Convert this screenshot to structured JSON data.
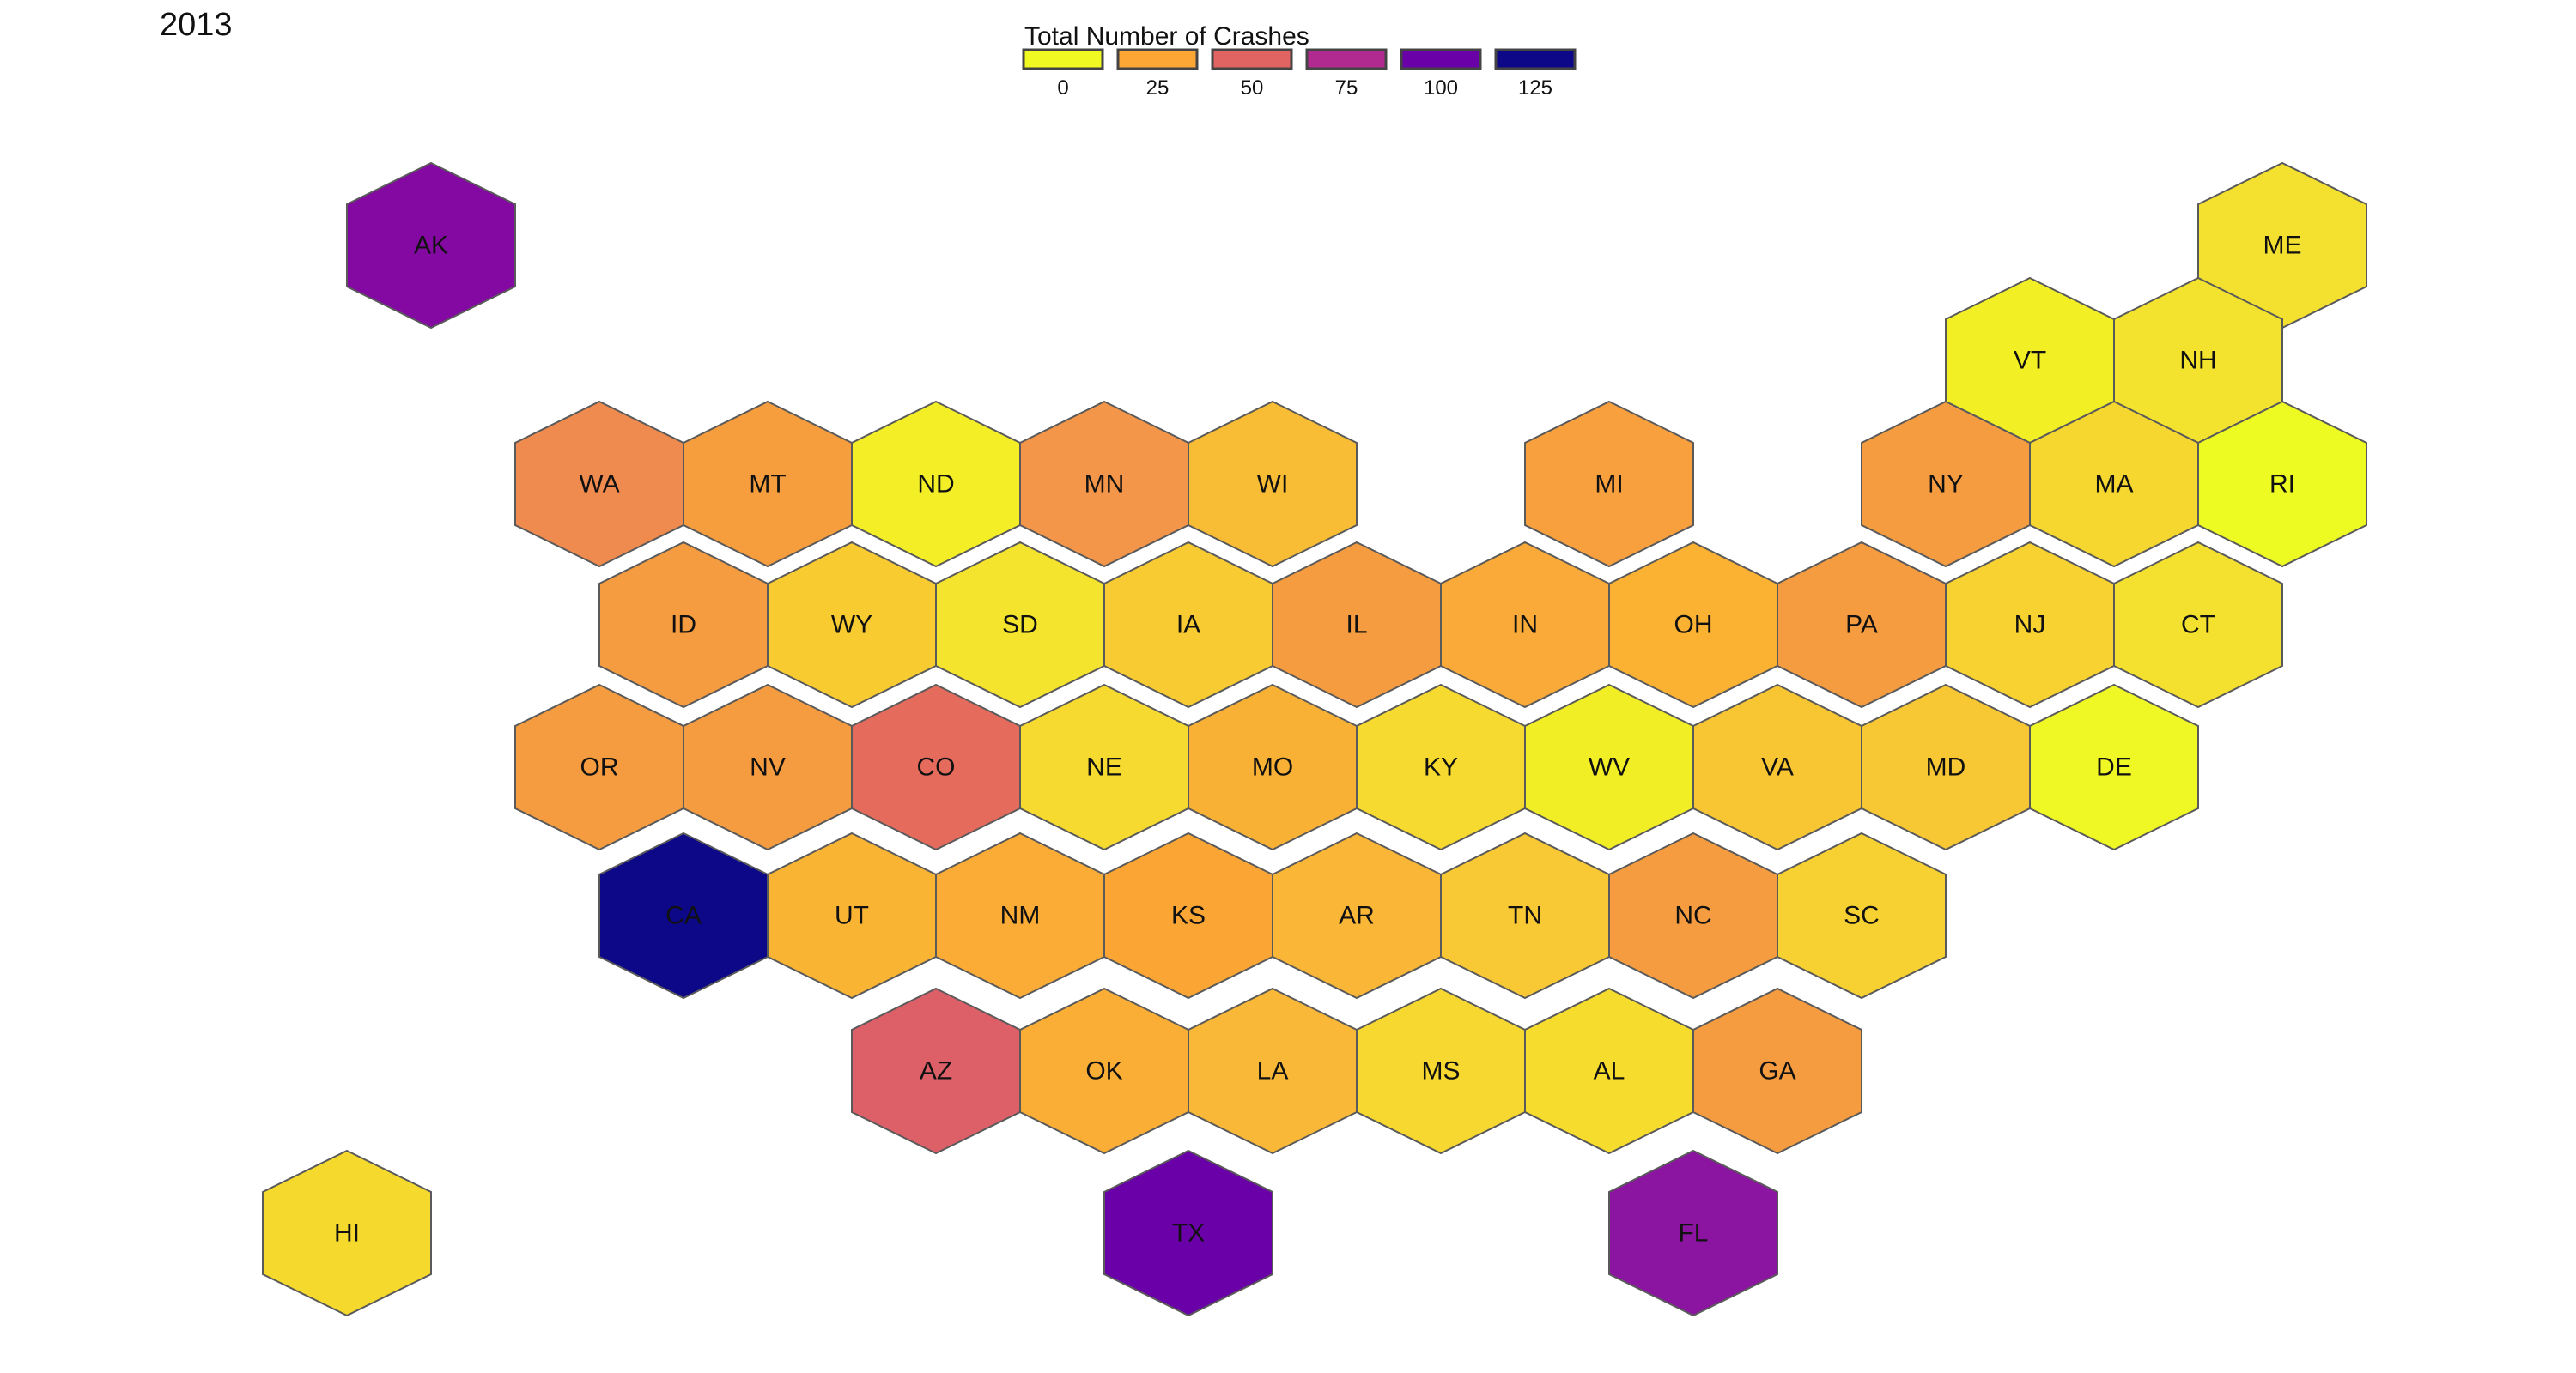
{
  "year_label": "2013",
  "legend": {
    "title": "Total Number of Crashes",
    "ticks": [
      "0",
      "25",
      "50",
      "75",
      "100",
      "125"
    ],
    "colors": [
      "#f0f921",
      "#fca636",
      "#e16462",
      "#b12a90",
      "#6a00a8",
      "#0d0887"
    ]
  },
  "color_scale": {
    "min": 0,
    "max": 125
  },
  "chart_data": {
    "type": "hexmap",
    "title": "",
    "legend_title": "Total Number of Crashes",
    "value_range": [
      0,
      125
    ],
    "states": [
      {
        "code": "AK",
        "value": 96,
        "color": "#8409a3"
      },
      {
        "code": "ME",
        "value": 7,
        "color": "#f3e02f"
      },
      {
        "code": "VT",
        "value": 3,
        "color": "#f2ef25"
      },
      {
        "code": "NH",
        "value": 6,
        "color": "#f3e32e"
      },
      {
        "code": "WA",
        "value": 38,
        "color": "#f08b4f"
      },
      {
        "code": "MT",
        "value": 30,
        "color": "#f69d3e"
      },
      {
        "code": "ND",
        "value": 3,
        "color": "#f3ee26"
      },
      {
        "code": "MN",
        "value": 33,
        "color": "#f3964a"
      },
      {
        "code": "WI",
        "value": 16,
        "color": "#f8bd34"
      },
      {
        "code": "MI",
        "value": 29,
        "color": "#f89f3e"
      },
      {
        "code": "NY",
        "value": 30,
        "color": "#f69c40"
      },
      {
        "code": "MA",
        "value": 11,
        "color": "#f6d730"
      },
      {
        "code": "RI",
        "value": 1,
        "color": "#eefb23"
      },
      {
        "code": "ID",
        "value": 30,
        "color": "#f69c40"
      },
      {
        "code": "WY",
        "value": 12,
        "color": "#f8cb31"
      },
      {
        "code": "SD",
        "value": 6,
        "color": "#f4e42d"
      },
      {
        "code": "IA",
        "value": 12,
        "color": "#f7cb31"
      },
      {
        "code": "IL",
        "value": 30,
        "color": "#f69c40"
      },
      {
        "code": "IN",
        "value": 24,
        "color": "#f9aa38"
      },
      {
        "code": "OH",
        "value": 20,
        "color": "#fbb131"
      },
      {
        "code": "PA",
        "value": 30,
        "color": "#f69c40"
      },
      {
        "code": "NJ",
        "value": 12,
        "color": "#f7d231"
      },
      {
        "code": "CT",
        "value": 8,
        "color": "#f3e02f"
      },
      {
        "code": "OR",
        "value": 30,
        "color": "#f69c40"
      },
      {
        "code": "NV",
        "value": 30,
        "color": "#f69c40"
      },
      {
        "code": "CO",
        "value": 50,
        "color": "#e56c5d"
      },
      {
        "code": "NE",
        "value": 10,
        "color": "#f6da30"
      },
      {
        "code": "MO",
        "value": 20,
        "color": "#f9b135"
      },
      {
        "code": "KY",
        "value": 10,
        "color": "#f6da2f"
      },
      {
        "code": "WV",
        "value": 2,
        "color": "#f2ee26"
      },
      {
        "code": "VA",
        "value": 14,
        "color": "#f8c633"
      },
      {
        "code": "MD",
        "value": 14,
        "color": "#f8c834"
      },
      {
        "code": "DE",
        "value": 1,
        "color": "#eff825"
      },
      {
        "code": "CA",
        "value": 125,
        "color": "#0d0887"
      },
      {
        "code": "UT",
        "value": 18,
        "color": "#fab434"
      },
      {
        "code": "NM",
        "value": 21,
        "color": "#fbac36"
      },
      {
        "code": "KS",
        "value": 23,
        "color": "#fba634"
      },
      {
        "code": "AR",
        "value": 18,
        "color": "#fab637"
      },
      {
        "code": "TN",
        "value": 13,
        "color": "#f8c835"
      },
      {
        "code": "NC",
        "value": 30,
        "color": "#f69c40"
      },
      {
        "code": "SC",
        "value": 11,
        "color": "#f7d131"
      },
      {
        "code": "AZ",
        "value": 53,
        "color": "#dd5f68"
      },
      {
        "code": "OK",
        "value": 21,
        "color": "#faae36"
      },
      {
        "code": "LA",
        "value": 17,
        "color": "#f9b837"
      },
      {
        "code": "MS",
        "value": 10,
        "color": "#f6d830"
      },
      {
        "code": "AL",
        "value": 9,
        "color": "#f6dc2d"
      },
      {
        "code": "GA",
        "value": 30,
        "color": "#f69c40"
      },
      {
        "code": "HI",
        "value": 9,
        "color": "#f5d92d"
      },
      {
        "code": "TX",
        "value": 105,
        "color": "#6a00a8"
      },
      {
        "code": "FL",
        "value": 92,
        "color": "#8b15a0"
      }
    ]
  }
}
